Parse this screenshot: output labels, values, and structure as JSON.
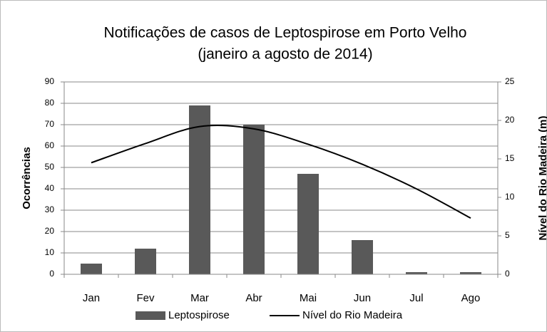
{
  "chart_data": {
    "type": "bar-line",
    "title": [
      "Notificações de casos de Leptospirose em Porto Velho",
      "(janeiro a agosto de 2014)"
    ],
    "y_label": "Ocorrências",
    "y2_label": "Nível do Rio Madeira (m)",
    "categories": [
      "Jan",
      "Fev",
      "Mar",
      "Abr",
      "Mai",
      "Jun",
      "Jul",
      "Ago"
    ],
    "series": [
      {
        "name": "Leptospirose",
        "type": "bar",
        "color": "#595959",
        "values": [
          5,
          12,
          79,
          70,
          47,
          16,
          1,
          1
        ]
      },
      {
        "name": "Nível do Rio Madeira",
        "type": "line",
        "color": "#000000",
        "axis": "y2",
        "values": [
          14.5,
          17,
          19.2,
          18.9,
          16.9,
          14.3,
          11.1,
          7.3
        ]
      }
    ],
    "ylim": [
      0,
      90
    ],
    "yticks": [
      0,
      10,
      20,
      30,
      40,
      50,
      60,
      70,
      80,
      90
    ],
    "y2lim": [
      0,
      25
    ],
    "y2ticks": [
      0,
      5,
      10,
      15,
      20,
      25
    ],
    "grid": true,
    "legend": "bottom"
  }
}
